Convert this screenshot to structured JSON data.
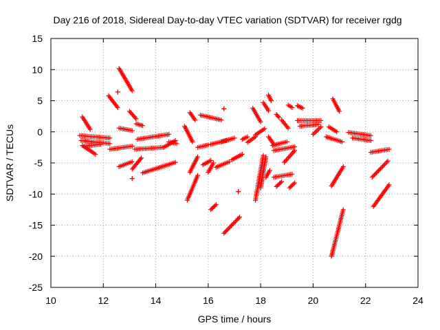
{
  "chart_data": {
    "type": "scatter",
    "title": "Day 216 of 2018, Sidereal Day-to-day VTEC variation (SDTVAR) for receiver rgdg",
    "xlabel": "GPS time / hours",
    "ylabel": "SDTVAR / TECUs",
    "xlim": [
      10,
      24
    ],
    "ylim": [
      -25,
      15
    ],
    "xticks": [
      "10",
      "12",
      "14",
      "16",
      "18",
      "20",
      "22",
      "24"
    ],
    "yticks": [
      "15",
      "10",
      "5",
      "0",
      "-5",
      "-10",
      "-15",
      "-20",
      "-25"
    ],
    "grid": true,
    "marker": "+",
    "color": "#ff0000",
    "arcs": [
      {
        "x": [
          11.2,
          11.5
        ],
        "y": [
          2.4,
          0.4
        ]
      },
      {
        "x": [
          11.1,
          12.25
        ],
        "y": [
          -0.6,
          -1.0
        ]
      },
      {
        "x": [
          11.15,
          12.25
        ],
        "y": [
          -1.4,
          -1.9
        ]
      },
      {
        "x": [
          11.2,
          11.7
        ],
        "y": [
          -2.2,
          -3.6
        ]
      },
      {
        "x": [
          11.3,
          11.9
        ],
        "y": [
          -2.3,
          -2.0
        ]
      },
      {
        "x": [
          12.2,
          12.55
        ],
        "y": [
          5.8,
          3.9
        ]
      },
      {
        "x": [
          12.25,
          13.1
        ],
        "y": [
          -2.8,
          -2.3
        ]
      },
      {
        "x": [
          12.6,
          13.1
        ],
        "y": [
          10.2,
          6.6
        ]
      },
      {
        "x": [
          12.6,
          13.1
        ],
        "y": [
          0.6,
          0.2
        ]
      },
      {
        "x": [
          12.6,
          13.1
        ],
        "y": [
          -5.6,
          -4.8
        ]
      },
      {
        "x": [
          13.0,
          13.25
        ],
        "y": [
          3.3,
          2.1
        ]
      },
      {
        "x": [
          13.1,
          13.45
        ],
        "y": [
          -6.0,
          -4.2
        ]
      },
      {
        "x": [
          13.2,
          14.3
        ],
        "y": [
          -2.8,
          -2.5
        ]
      },
      {
        "x": [
          13.25,
          13.5
        ],
        "y": [
          1.3,
          1.0
        ]
      },
      {
        "x": [
          13.3,
          14.5
        ],
        "y": [
          -1.2,
          -0.4
        ]
      },
      {
        "x": [
          13.5,
          14.75
        ],
        "y": [
          -6.6,
          -4.9
        ]
      },
      {
        "x": [
          14.3,
          14.75
        ],
        "y": [
          -2.5,
          -1.4
        ]
      },
      {
        "x": [
          14.5,
          14.8
        ],
        "y": [
          -1.6,
          -1.9
        ]
      },
      {
        "x": [
          15.1,
          15.4
        ],
        "y": [
          0.9,
          -1.6
        ]
      },
      {
        "x": [
          15.3,
          15.5
        ],
        "y": [
          3.1,
          1.9
        ]
      },
      {
        "x": [
          15.3,
          15.6
        ],
        "y": [
          -6.5,
          -4.0
        ]
      },
      {
        "x": [
          15.2,
          15.6
        ],
        "y": [
          -11.0,
          -7.0
        ]
      },
      {
        "x": [
          15.6,
          16.0
        ],
        "y": [
          -2.5,
          -2.1
        ]
      },
      {
        "x": [
          15.7,
          16.5
        ],
        "y": [
          2.7,
          1.9
        ]
      },
      {
        "x": [
          15.8,
          16.1
        ],
        "y": [
          -5.3,
          -4.6
        ]
      },
      {
        "x": [
          16.0,
          16.2
        ],
        "y": [
          -6.5,
          -5.0
        ]
      },
      {
        "x": [
          16.1,
          16.7
        ],
        "y": [
          -2.0,
          -1.4
        ]
      },
      {
        "x": [
          16.1,
          16.3
        ],
        "y": [
          -12.5,
          -11.7
        ]
      },
      {
        "x": [
          16.3,
          16.8
        ],
        "y": [
          -5.7,
          -4.8
        ]
      },
      {
        "x": [
          16.5,
          17.0
        ],
        "y": [
          -1.6,
          -1.0
        ]
      },
      {
        "x": [
          16.6,
          17.2
        ],
        "y": [
          -16.3,
          -13.7
        ]
      },
      {
        "x": [
          16.9,
          17.3
        ],
        "y": [
          -4.5,
          -3.6
        ]
      },
      {
        "x": [
          17.3,
          17.5
        ],
        "y": [
          -1.2,
          -0.8
        ]
      },
      {
        "x": [
          17.5,
          17.8
        ],
        "y": [
          -1.7,
          -0.8
        ]
      },
      {
        "x": [
          17.7,
          18.0
        ],
        "y": [
          3.8,
          1.6
        ]
      },
      {
        "x": [
          17.8,
          18.15
        ],
        "y": [
          -0.5,
          0.5
        ]
      },
      {
        "x": [
          17.8,
          18.1
        ],
        "y": [
          -11.0,
          -3.8
        ]
      },
      {
        "x": [
          18.0,
          18.2
        ],
        "y": [
          -9.0,
          -4.0
        ]
      },
      {
        "x": [
          18.1,
          18.3
        ],
        "y": [
          4.7,
          3.4
        ]
      },
      {
        "x": [
          18.2,
          18.35
        ],
        "y": [
          -7.3,
          -6.2
        ]
      },
      {
        "x": [
          18.3,
          18.5
        ],
        "y": [
          -0.8,
          -2.0
        ]
      },
      {
        "x": [
          18.3,
          18.4
        ],
        "y": [
          5.9,
          5.0
        ]
      },
      {
        "x": [
          18.45,
          19.0
        ],
        "y": [
          -2.2,
          -1.6
        ]
      },
      {
        "x": [
          18.5,
          19.2
        ],
        "y": [
          -7.3,
          -6.8
        ]
      },
      {
        "x": [
          18.6,
          18.7
        ],
        "y": [
          2.8,
          2.3
        ]
      },
      {
        "x": [
          18.8,
          19.05
        ],
        "y": [
          1.9,
          0.6
        ]
      },
      {
        "x": [
          18.5,
          19.3
        ],
        "y": [
          -3.0,
          -2.4
        ]
      },
      {
        "x": [
          18.9,
          19.3
        ],
        "y": [
          -4.9,
          -3.0
        ]
      },
      {
        "x": [
          18.6,
          18.8
        ],
        "y": [
          -8.8,
          -8.0
        ]
      },
      {
        "x": [
          19.05,
          19.2
        ],
        "y": [
          4.3,
          3.9
        ]
      },
      {
        "x": [
          19.4,
          19.6
        ],
        "y": [
          4.2,
          3.8
        ]
      },
      {
        "x": [
          19.1,
          19.3
        ],
        "y": [
          -9.0,
          -8.2
        ]
      },
      {
        "x": [
          19.4,
          20.3
        ],
        "y": [
          1.8,
          1.8
        ]
      },
      {
        "x": [
          19.5,
          20.2
        ],
        "y": [
          0.9,
          1.2
        ]
      },
      {
        "x": [
          20.0,
          20.3
        ],
        "y": [
          -0.4,
          0.8
        ]
      },
      {
        "x": [
          20.5,
          21.1
        ],
        "y": [
          -0.8,
          -1.6
        ]
      },
      {
        "x": [
          20.6,
          20.9
        ],
        "y": [
          0.8,
          0.0
        ]
      },
      {
        "x": [
          20.75,
          21.0
        ],
        "y": [
          5.3,
          3.3
        ]
      },
      {
        "x": [
          20.7,
          21.15
        ],
        "y": [
          -8.7,
          -5.6
        ]
      },
      {
        "x": [
          20.7,
          21.15
        ],
        "y": [
          -20.0,
          -12.5
        ]
      },
      {
        "x": [
          21.35,
          22.2
        ],
        "y": [
          -0.1,
          -0.6
        ]
      },
      {
        "x": [
          21.5,
          22.2
        ],
        "y": [
          -1.0,
          -1.4
        ]
      },
      {
        "x": [
          22.2,
          22.9
        ],
        "y": [
          -3.3,
          -2.8
        ]
      },
      {
        "x": [
          22.25,
          22.85
        ],
        "y": [
          -7.3,
          -4.7
        ]
      },
      {
        "x": [
          22.3,
          22.9
        ],
        "y": [
          -12.0,
          -8.5
        ]
      },
      {
        "x": [
          16.6,
          16.6
        ],
        "y": [
          3.7,
          3.7
        ]
      },
      {
        "x": [
          17.15,
          17.15
        ],
        "y": [
          -9.6,
          -9.6
        ]
      },
      {
        "x": [
          12.55,
          12.55
        ],
        "y": [
          6.4,
          6.4
        ]
      },
      {
        "x": [
          13.1,
          13.1
        ],
        "y": [
          -7.5,
          -7.5
        ]
      }
    ]
  }
}
